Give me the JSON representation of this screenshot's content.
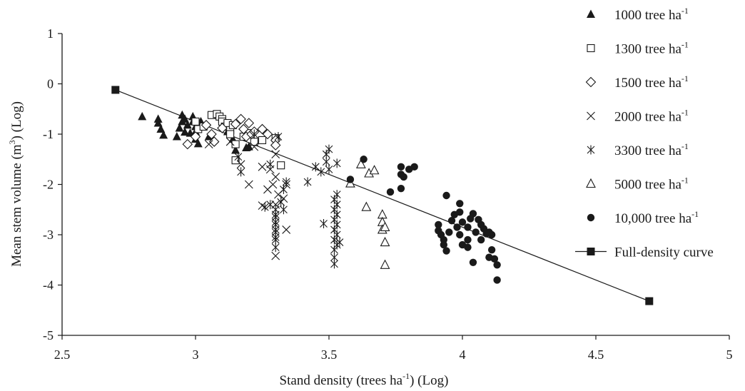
{
  "chart_data": {
    "type": "scatter",
    "xlabel": "Stand density (trees ha",
    "xlabel_sup": "-1",
    "xlabel_tail": ") (Log)",
    "ylabel": "Mean stem volume (m",
    "ylabel_sup": "3",
    "ylabel_tail": ") (Log)",
    "xlim": [
      2.5,
      5
    ],
    "ylim": [
      -5,
      1
    ],
    "x_ticks": [
      "2.5",
      "3",
      "3.5",
      "4",
      "4.5",
      "5"
    ],
    "y_ticks": [
      "-5",
      "-4",
      "-3",
      "-2",
      "-1",
      "0",
      "1"
    ],
    "grid": false,
    "legend_position": "right",
    "series": [
      {
        "name": "1000 tree ha",
        "name_sup": "-1",
        "marker": "triangle-filled",
        "points": [
          [
            2.8,
            -0.65
          ],
          [
            2.86,
            -0.7
          ],
          [
            2.86,
            -0.78
          ],
          [
            2.87,
            -0.9
          ],
          [
            2.88,
            -1.02
          ],
          [
            2.93,
            -1.05
          ],
          [
            2.94,
            -0.88
          ],
          [
            2.95,
            -0.75
          ],
          [
            2.95,
            -0.62
          ],
          [
            2.96,
            -0.7
          ],
          [
            2.96,
            -0.96
          ],
          [
            2.97,
            -0.82
          ],
          [
            2.98,
            -0.98
          ],
          [
            2.99,
            -0.65
          ],
          [
            2.99,
            -0.75
          ],
          [
            3.0,
            -0.85
          ],
          [
            3.0,
            -0.95
          ],
          [
            3.0,
            -1.1
          ],
          [
            3.01,
            -1.19
          ],
          [
            3.02,
            -0.75
          ],
          [
            3.05,
            -1.05
          ],
          [
            3.12,
            -0.95
          ],
          [
            3.14,
            -1.1
          ],
          [
            3.15,
            -1.32
          ],
          [
            3.19,
            -1.27
          ],
          [
            3.2,
            -1.25
          ]
        ]
      },
      {
        "name": "1300 tree ha",
        "name_sup": "-1",
        "marker": "square-open",
        "points": [
          [
            3.0,
            -0.75
          ],
          [
            3.01,
            -0.9
          ],
          [
            3.03,
            -0.85
          ],
          [
            3.06,
            -0.62
          ],
          [
            3.08,
            -0.6
          ],
          [
            3.09,
            -0.65
          ],
          [
            3.1,
            -0.7
          ],
          [
            3.1,
            -0.75
          ],
          [
            3.11,
            -0.85
          ],
          [
            3.12,
            -0.78
          ],
          [
            3.13,
            -0.92
          ],
          [
            3.13,
            -1.0
          ],
          [
            3.14,
            -0.82
          ],
          [
            3.15,
            -1.2
          ],
          [
            3.15,
            -1.52
          ],
          [
            3.18,
            -1.05
          ],
          [
            3.2,
            -0.98
          ],
          [
            3.22,
            -1.15
          ],
          [
            3.25,
            -1.12
          ],
          [
            3.3,
            -1.08
          ],
          [
            3.32,
            -1.62
          ]
        ]
      },
      {
        "name": "1500 tree ha",
        "name_sup": "-1",
        "marker": "diamond-open",
        "points": [
          [
            2.97,
            -1.2
          ],
          [
            3.0,
            -1.05
          ],
          [
            3.04,
            -0.82
          ],
          [
            3.06,
            -1.0
          ],
          [
            3.07,
            -1.15
          ],
          [
            3.1,
            -0.88
          ],
          [
            3.15,
            -0.8
          ],
          [
            3.17,
            -0.7
          ],
          [
            3.18,
            -0.9
          ],
          [
            3.19,
            -1.05
          ],
          [
            3.2,
            -0.78
          ],
          [
            3.21,
            -1.0
          ],
          [
            3.22,
            -0.95
          ],
          [
            3.25,
            -0.9
          ],
          [
            3.27,
            -1.0
          ],
          [
            3.3,
            -1.12
          ],
          [
            3.3,
            -1.22
          ]
        ]
      },
      {
        "name": "2000 tree ha",
        "name_sup": "-1",
        "marker": "x",
        "points": [
          [
            3.05,
            -1.2
          ],
          [
            3.13,
            -1.15
          ],
          [
            3.17,
            -1.6
          ],
          [
            3.2,
            -2.0
          ],
          [
            3.22,
            -1.25
          ],
          [
            3.25,
            -1.65
          ],
          [
            3.25,
            -2.42
          ],
          [
            3.27,
            -2.1
          ],
          [
            3.28,
            -1.7
          ],
          [
            3.29,
            -2.0
          ],
          [
            3.3,
            -1.4
          ],
          [
            3.3,
            -1.85
          ],
          [
            3.3,
            -2.4
          ],
          [
            3.31,
            -2.2
          ],
          [
            3.3,
            -3.42
          ],
          [
            3.33,
            -2.28
          ],
          [
            3.34,
            -2.0
          ],
          [
            3.34,
            -2.9
          ]
        ]
      },
      {
        "name": "3300 tree ha",
        "name_sup": "-1",
        "marker": "asterisk",
        "points": [
          [
            3.16,
            -1.45
          ],
          [
            3.17,
            -1.75
          ],
          [
            3.22,
            -1.0
          ],
          [
            3.26,
            -2.45
          ],
          [
            3.28,
            -2.4
          ],
          [
            3.28,
            -1.6
          ],
          [
            3.3,
            -2.6
          ],
          [
            3.3,
            -2.75
          ],
          [
            3.3,
            -2.9
          ],
          [
            3.3,
            -3.05
          ],
          [
            3.3,
            -2.5
          ],
          [
            3.3,
            -2.65
          ],
          [
            3.3,
            -2.8
          ],
          [
            3.3,
            -2.95
          ],
          [
            3.3,
            -3.1
          ],
          [
            3.3,
            -3.25
          ],
          [
            3.31,
            -1.05
          ],
          [
            3.32,
            -2.35
          ],
          [
            3.33,
            -2.5
          ],
          [
            3.33,
            -2.1
          ],
          [
            3.34,
            -1.95
          ],
          [
            3.42,
            -1.95
          ],
          [
            3.45,
            -1.65
          ],
          [
            3.47,
            -1.75
          ],
          [
            3.48,
            -2.78
          ],
          [
            3.49,
            -1.55
          ],
          [
            3.49,
            -1.4
          ],
          [
            3.5,
            -1.3
          ],
          [
            3.5,
            -1.7
          ],
          [
            3.52,
            -2.3
          ],
          [
            3.52,
            -2.5
          ],
          [
            3.52,
            -2.7
          ],
          [
            3.52,
            -2.9
          ],
          [
            3.52,
            -3.1
          ],
          [
            3.52,
            -3.3
          ],
          [
            3.52,
            -3.45
          ],
          [
            3.52,
            -3.58
          ],
          [
            3.53,
            -2.2
          ],
          [
            3.53,
            -2.4
          ],
          [
            3.53,
            -2.6
          ],
          [
            3.53,
            -2.8
          ],
          [
            3.53,
            -3.0
          ],
          [
            3.53,
            -3.2
          ],
          [
            3.53,
            -1.58
          ],
          [
            3.54,
            -3.15
          ]
        ]
      },
      {
        "name": "5000 tree ha",
        "name_sup": "-1",
        "marker": "triangle-open",
        "points": [
          [
            3.58,
            -1.98
          ],
          [
            3.62,
            -1.6
          ],
          [
            3.64,
            -2.45
          ],
          [
            3.65,
            -1.78
          ],
          [
            3.67,
            -1.72
          ],
          [
            3.7,
            -2.6
          ],
          [
            3.7,
            -2.75
          ],
          [
            3.7,
            -2.9
          ],
          [
            3.71,
            -2.85
          ],
          [
            3.71,
            -3.15
          ],
          [
            3.71,
            -3.6
          ]
        ]
      },
      {
        "name": "10,000 tree ha",
        "name_sup": "-1",
        "marker": "circle-filled",
        "points": [
          [
            3.58,
            -1.9
          ],
          [
            3.63,
            -1.5
          ],
          [
            3.73,
            -2.15
          ],
          [
            3.77,
            -1.8
          ],
          [
            3.77,
            -2.08
          ],
          [
            3.77,
            -1.65
          ],
          [
            3.78,
            -1.85
          ],
          [
            3.8,
            -1.7
          ],
          [
            3.82,
            -1.65
          ],
          [
            3.91,
            -2.8
          ],
          [
            3.91,
            -2.92
          ],
          [
            3.92,
            -3.0
          ],
          [
            3.93,
            -3.1
          ],
          [
            3.93,
            -3.2
          ],
          [
            3.94,
            -3.32
          ],
          [
            3.94,
            -2.22
          ],
          [
            3.95,
            -2.95
          ],
          [
            3.96,
            -2.72
          ],
          [
            3.97,
            -2.6
          ],
          [
            3.98,
            -2.85
          ],
          [
            3.99,
            -2.38
          ],
          [
            3.99,
            -2.55
          ],
          [
            3.99,
            -3.0
          ],
          [
            4.0,
            -2.75
          ],
          [
            4.0,
            -3.2
          ],
          [
            4.02,
            -2.85
          ],
          [
            4.02,
            -3.1
          ],
          [
            4.02,
            -3.25
          ],
          [
            4.03,
            -2.68
          ],
          [
            4.04,
            -2.58
          ],
          [
            4.04,
            -3.55
          ],
          [
            4.05,
            -2.95
          ],
          [
            4.06,
            -2.7
          ],
          [
            4.07,
            -2.8
          ],
          [
            4.07,
            -3.1
          ],
          [
            4.08,
            -2.88
          ],
          [
            4.09,
            -2.98
          ],
          [
            4.1,
            -3.45
          ],
          [
            4.1,
            -2.95
          ],
          [
            4.11,
            -3.0
          ],
          [
            4.11,
            -3.3
          ],
          [
            4.12,
            -3.48
          ],
          [
            4.13,
            -3.6
          ],
          [
            4.13,
            -3.9
          ]
        ]
      }
    ],
    "reference_line": {
      "name": "Full-density curve",
      "marker": "square-filled",
      "points": [
        [
          2.7,
          -0.12
        ],
        [
          4.7,
          -4.32
        ]
      ]
    }
  }
}
